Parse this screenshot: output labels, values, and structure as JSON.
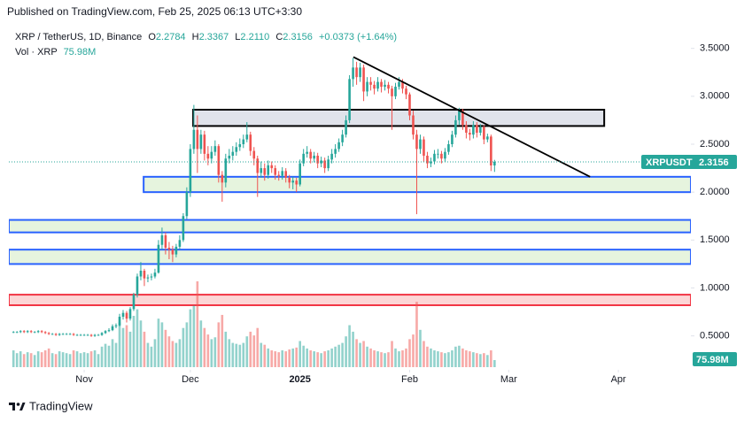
{
  "header": {
    "published": "Published on TradingView.com, Feb 25, 2025 06:13 UTC+3:30",
    "symbol": "XRP / TetherUS, 1D, Binance",
    "o_key": "O",
    "open": "2.2784",
    "h_key": "H",
    "high": "2.3367",
    "l_key": "L",
    "low": "2.2110",
    "c_key": "C",
    "close": "2.3156",
    "change": "+0.0373 (+1.64%)"
  },
  "chart_data": {
    "type": "candlestick",
    "xlim": [
      -21.3,
      171.5
    ],
    "ylim": [
      0.1,
      3.7
    ],
    "grid": false,
    "xticks": [
      {
        "value": 0,
        "label": "Nov"
      },
      {
        "value": 30,
        "label": "Dec"
      },
      {
        "value": 61,
        "label": "2025"
      },
      {
        "value": 92,
        "label": "Feb"
      },
      {
        "value": 120,
        "label": "Mar"
      },
      {
        "value": 151,
        "label": "Apr"
      }
    ],
    "yticks": [
      {
        "value": 0.5,
        "label": "0.5000"
      },
      {
        "value": 1,
        "label": "1.0000"
      },
      {
        "value": 1.5,
        "label": "1.5000"
      },
      {
        "value": 2,
        "label": "2.0000"
      },
      {
        "value": 2.5,
        "label": "2.5000"
      },
      {
        "value": 3,
        "label": "3.0000"
      },
      {
        "value": 3.5,
        "label": "3.5000"
      }
    ],
    "series": [
      {
        "name": "XRPUSDT",
        "up_color": "#26a69a",
        "down_color": "#ef5350",
        "x": [
          -20,
          -19,
          -18,
          -17,
          -16,
          -15,
          -14,
          -13,
          -12,
          -11,
          -10,
          -9,
          -8,
          -7,
          -6,
          -5,
          -4,
          -3,
          -2,
          -1,
          0,
          1,
          2,
          3,
          4,
          5,
          6,
          7,
          8,
          9,
          10,
          11,
          12,
          13,
          14,
          15,
          16,
          17,
          18,
          19,
          20,
          21,
          22,
          23,
          24,
          25,
          26,
          27,
          28,
          29,
          30,
          31,
          32,
          33,
          34,
          35,
          36,
          37,
          38,
          39,
          40,
          41,
          42,
          43,
          44,
          45,
          46,
          47,
          48,
          49,
          50,
          51,
          52,
          53,
          54,
          55,
          56,
          57,
          58,
          59,
          60,
          61,
          62,
          63,
          64,
          65,
          66,
          67,
          68,
          69,
          70,
          71,
          72,
          73,
          74,
          75,
          76,
          77,
          78,
          79,
          80,
          81,
          82,
          83,
          84,
          85,
          86,
          87,
          88,
          89,
          90,
          91,
          92,
          93,
          94,
          95,
          96,
          97,
          98,
          99,
          100,
          101,
          102,
          103,
          104,
          105,
          106,
          107,
          108,
          109,
          110,
          111,
          112,
          113,
          114,
          115,
          116
        ],
        "open": [
          0.54,
          0.54,
          0.54,
          0.55,
          0.54,
          0.55,
          0.54,
          0.54,
          0.55,
          0.54,
          0.53,
          0.52,
          0.52,
          0.51,
          0.52,
          0.52,
          0.52,
          0.52,
          0.51,
          0.51,
          0.51,
          0.51,
          0.51,
          0.5,
          0.51,
          0.51,
          0.53,
          0.55,
          0.56,
          0.6,
          0.61,
          0.7,
          0.74,
          0.68,
          0.78,
          0.93,
          1.12,
          1.18,
          1.1,
          1.11,
          1.12,
          1.16,
          1.45,
          1.55,
          1.42,
          1.4,
          1.35,
          1.43,
          1.5,
          1.75,
          2.0,
          2.45,
          2.65,
          2.45,
          2.6,
          2.4,
          2.35,
          2.42,
          2.48,
          2.18,
          2.1,
          2.35,
          2.38,
          2.42,
          2.47,
          2.5,
          2.55,
          2.6,
          2.43,
          2.35,
          2.2,
          2.25,
          2.18,
          2.28,
          2.25,
          2.18,
          2.17,
          2.22,
          2.15,
          2.1,
          2.12,
          2.08,
          2.3,
          2.4,
          2.42,
          2.35,
          2.38,
          2.3,
          2.33,
          2.25,
          2.34,
          2.4,
          2.45,
          2.52,
          2.6,
          2.75,
          3.18,
          3.3,
          3.2,
          3.3,
          3.05,
          3.15,
          3.12,
          3.08,
          3.15,
          3.1,
          3.12,
          3.08,
          3.0,
          3.1,
          3.15,
          3.08,
          3.02,
          2.8,
          2.6,
          2.45,
          2.55,
          2.38,
          2.3,
          2.32,
          2.4,
          2.4,
          2.35,
          2.42,
          2.5,
          2.6,
          2.75,
          2.85,
          2.7,
          2.62,
          2.6,
          2.7,
          2.62,
          2.68,
          2.55,
          2.58,
          2.2784
        ],
        "high": [
          0.55,
          0.55,
          0.56,
          0.56,
          0.56,
          0.56,
          0.55,
          0.56,
          0.56,
          0.55,
          0.54,
          0.53,
          0.53,
          0.53,
          0.53,
          0.53,
          0.53,
          0.53,
          0.52,
          0.52,
          0.52,
          0.52,
          0.52,
          0.52,
          0.52,
          0.54,
          0.56,
          0.58,
          0.62,
          0.63,
          0.73,
          0.77,
          0.76,
          0.8,
          0.95,
          1.15,
          1.27,
          1.2,
          1.14,
          1.15,
          1.2,
          1.5,
          1.63,
          1.58,
          1.48,
          1.44,
          1.46,
          1.55,
          1.78,
          2.05,
          2.5,
          2.91,
          2.8,
          2.65,
          2.64,
          2.48,
          2.48,
          2.54,
          2.5,
          2.22,
          2.4,
          2.45,
          2.48,
          2.52,
          2.56,
          2.6,
          2.73,
          2.63,
          2.47,
          2.38,
          2.32,
          2.3,
          2.33,
          2.32,
          2.28,
          2.22,
          2.26,
          2.25,
          2.18,
          2.16,
          2.15,
          2.34,
          2.45,
          2.48,
          2.45,
          2.42,
          2.41,
          2.37,
          2.36,
          2.38,
          2.45,
          2.5,
          2.56,
          2.65,
          2.8,
          3.22,
          3.4,
          3.36,
          3.35,
          3.33,
          3.2,
          3.2,
          3.16,
          3.2,
          3.18,
          3.17,
          3.15,
          3.11,
          3.14,
          3.2,
          3.18,
          3.11,
          3.04,
          2.85,
          2.65,
          2.6,
          2.58,
          2.42,
          2.36,
          2.44,
          2.45,
          2.43,
          2.46,
          2.54,
          2.64,
          2.8,
          2.88,
          2.87,
          2.74,
          2.66,
          2.74,
          2.73,
          2.71,
          2.7,
          2.61,
          2.6,
          2.3367
        ],
        "low": [
          0.53,
          0.53,
          0.53,
          0.53,
          0.53,
          0.53,
          0.53,
          0.53,
          0.53,
          0.52,
          0.51,
          0.51,
          0.5,
          0.5,
          0.51,
          0.51,
          0.51,
          0.5,
          0.5,
          0.5,
          0.5,
          0.5,
          0.49,
          0.49,
          0.5,
          0.5,
          0.52,
          0.54,
          0.55,
          0.58,
          0.6,
          0.67,
          0.64,
          0.66,
          0.76,
          0.9,
          1.08,
          1.02,
          1.06,
          1.08,
          1.1,
          1.15,
          1.4,
          1.35,
          1.3,
          1.27,
          1.32,
          1.4,
          1.48,
          1.72,
          1.95,
          2.4,
          2.2,
          2.4,
          2.33,
          2.28,
          2.3,
          2.38,
          2.1,
          1.9,
          2.05,
          2.3,
          2.33,
          2.38,
          2.43,
          2.46,
          2.52,
          2.38,
          2.28,
          1.95,
          2.15,
          2.12,
          2.14,
          2.2,
          2.13,
          2.12,
          2.13,
          2.1,
          2.04,
          2.03,
          2.0,
          2.06,
          2.27,
          2.36,
          2.3,
          2.31,
          2.25,
          2.26,
          2.2,
          2.22,
          2.3,
          2.36,
          2.42,
          2.48,
          2.57,
          2.72,
          3.1,
          3.12,
          3.15,
          2.95,
          3.0,
          3.06,
          3.02,
          3.05,
          3.04,
          3.06,
          3.03,
          2.65,
          2.97,
          3.07,
          3.03,
          2.97,
          2.75,
          2.55,
          1.77,
          2.4,
          2.32,
          2.25,
          2.26,
          2.29,
          2.35,
          2.3,
          2.32,
          2.39,
          2.47,
          2.57,
          2.7,
          2.65,
          2.56,
          2.54,
          2.56,
          2.57,
          2.59,
          2.5,
          2.52,
          2.22,
          2.211
        ],
        "close": [
          0.54,
          0.54,
          0.55,
          0.54,
          0.55,
          0.54,
          0.54,
          0.55,
          0.54,
          0.53,
          0.52,
          0.52,
          0.51,
          0.52,
          0.52,
          0.52,
          0.52,
          0.51,
          0.51,
          0.51,
          0.51,
          0.51,
          0.5,
          0.51,
          0.51,
          0.53,
          0.55,
          0.56,
          0.6,
          0.61,
          0.7,
          0.74,
          0.68,
          0.78,
          0.93,
          1.12,
          1.18,
          1.1,
          1.11,
          1.12,
          1.16,
          1.45,
          1.55,
          1.42,
          1.4,
          1.35,
          1.43,
          1.5,
          1.75,
          2.0,
          2.45,
          2.65,
          2.45,
          2.6,
          2.4,
          2.35,
          2.42,
          2.48,
          2.18,
          2.1,
          2.35,
          2.38,
          2.42,
          2.47,
          2.5,
          2.55,
          2.6,
          2.43,
          2.35,
          2.2,
          2.25,
          2.18,
          2.28,
          2.25,
          2.18,
          2.17,
          2.22,
          2.15,
          2.1,
          2.12,
          2.08,
          2.3,
          2.4,
          2.42,
          2.35,
          2.38,
          2.3,
          2.33,
          2.25,
          2.34,
          2.4,
          2.45,
          2.52,
          2.6,
          2.75,
          3.18,
          3.3,
          3.2,
          3.3,
          3.05,
          3.15,
          3.12,
          3.08,
          3.15,
          3.1,
          3.12,
          3.08,
          3.0,
          3.1,
          3.15,
          3.08,
          3.02,
          2.8,
          2.6,
          2.45,
          2.55,
          2.38,
          2.3,
          2.32,
          2.4,
          2.4,
          2.35,
          2.42,
          2.5,
          2.6,
          2.75,
          2.85,
          2.7,
          2.62,
          2.6,
          2.7,
          2.62,
          2.68,
          2.55,
          2.58,
          2.2784,
          2.3156
        ]
      }
    ],
    "volume": {
      "name": "Vol · XRP",
      "label": "75.98M",
      "vlim": [
        0,
        920
      ],
      "up_color": "rgba(38,166,154,0.5)",
      "down_color": "rgba(239,83,80,0.5)",
      "values": [
        180,
        150,
        170,
        140,
        160,
        150,
        130,
        170,
        160,
        180,
        200,
        150,
        140,
        170,
        160,
        150,
        140,
        180,
        170,
        150,
        160,
        150,
        170,
        180,
        140,
        220,
        250,
        230,
        300,
        260,
        480,
        420,
        450,
        380,
        550,
        620,
        500,
        380,
        260,
        220,
        300,
        520,
        480,
        400,
        330,
        280,
        260,
        300,
        420,
        480,
        620,
        660,
        920,
        500,
        420,
        350,
        300,
        320,
        480,
        560,
        380,
        300,
        260,
        250,
        240,
        260,
        330,
        380,
        340,
        420,
        260,
        240,
        200,
        180,
        170,
        160,
        180,
        170,
        190,
        200,
        210,
        280,
        230,
        200,
        180,
        170,
        160,
        150,
        170,
        180,
        200,
        220,
        240,
        260,
        330,
        450,
        380,
        300,
        260,
        280,
        220,
        200,
        180,
        170,
        160,
        150,
        160,
        280,
        200,
        170,
        180,
        200,
        300,
        350,
        700,
        400,
        280,
        220,
        200,
        180,
        170,
        160,
        150,
        160,
        180,
        220,
        230,
        200,
        180,
        170,
        160,
        150,
        140,
        150,
        130,
        180,
        75.98
      ]
    },
    "zones": [
      {
        "x": [
          30.8,
          147
        ],
        "y": [
          2.69,
          2.86
        ],
        "fill": "#e0e3eb",
        "stroke": "#000000"
      },
      {
        "x": [
          16.8,
          171.5
        ],
        "y": [
          2.0,
          2.16
        ],
        "fill": "#e6f4de",
        "stroke": "#2962ff"
      },
      {
        "x": [
          -21.3,
          171.5
        ],
        "y": [
          1.58,
          1.71
        ],
        "fill": "#e6f4de",
        "stroke": "#2962ff"
      },
      {
        "x": [
          -21.3,
          171.5
        ],
        "y": [
          1.25,
          1.4
        ],
        "fill": "#e6f4de",
        "stroke": "#2962ff"
      },
      {
        "x": [
          -21.3,
          171.5
        ],
        "y": [
          0.82,
          0.93
        ],
        "fill": "#fcd6d6",
        "stroke": "#f23645"
      }
    ],
    "trendlines": [
      {
        "x": [
          76.1,
          143
        ],
        "y": [
          3.41,
          2.16
        ],
        "color": "#000000"
      }
    ]
  },
  "footer": {
    "brand": "TradingView"
  }
}
